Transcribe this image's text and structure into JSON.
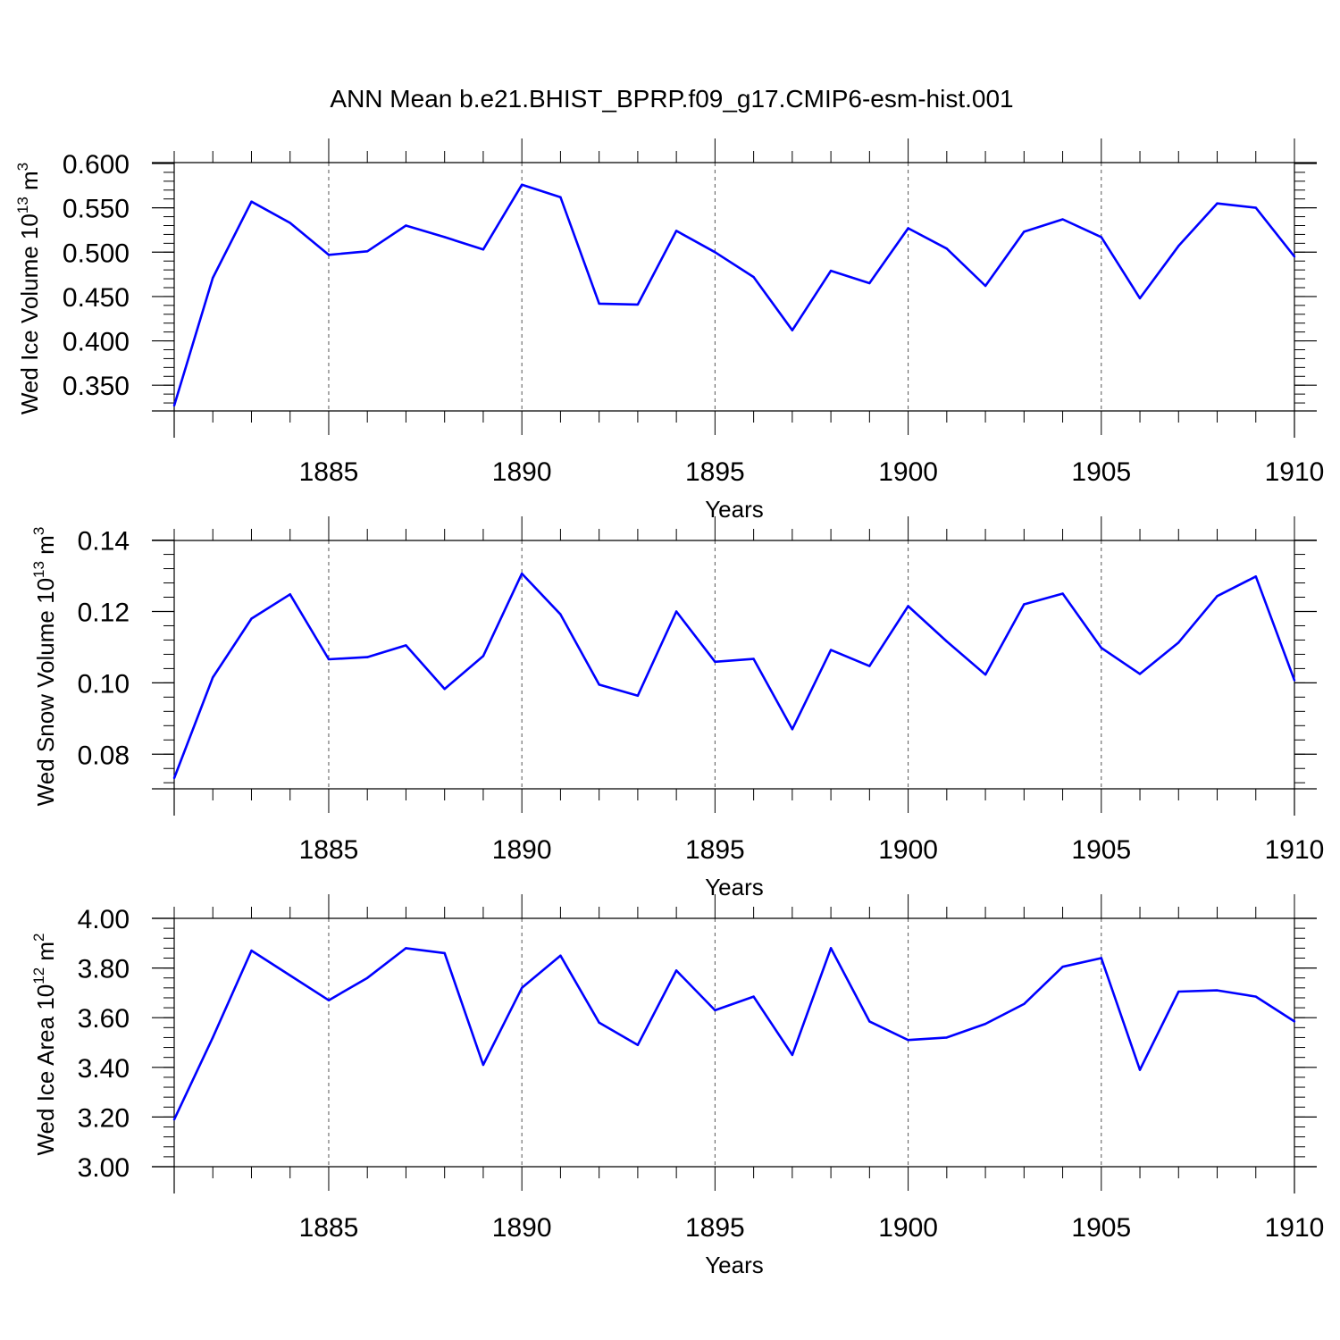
{
  "figure": {
    "title": "ANN Mean b.e21.BHIST_BPRP.f09_g17.CMIP6-esm-hist.001",
    "line_color": "#0000ff"
  },
  "chart_data": [
    {
      "type": "line",
      "title": "ANN Mean b.e21.BHIST_BPRP.f09_g17.CMIP6-esm-hist.001",
      "ylabel": {
        "text": "Wed Ice Volume 10",
        "exp": "13",
        "unit": " m",
        "unit_exp": "3"
      },
      "xlabel": "Years",
      "xlim": [
        1881,
        1910
      ],
      "ylim": [
        0.321,
        0.601
      ],
      "xticks": [
        1885,
        1890,
        1895,
        1900,
        1905,
        1910
      ],
      "yticks": [
        0.35,
        0.4,
        0.45,
        0.5,
        0.55,
        0.6
      ],
      "ytick_labels": [
        "0.350",
        "0.400",
        "0.450",
        "0.500",
        "0.550",
        "0.600"
      ],
      "y_minor_step": 0.01,
      "grid": "dashed vertical lines at major x ticks",
      "series": [
        {
          "x": [
            1881,
            1882,
            1883,
            1884,
            1885,
            1886,
            1887,
            1888,
            1889,
            1890,
            1891,
            1892,
            1893,
            1894,
            1895,
            1896,
            1897,
            1898,
            1899,
            1900,
            1901,
            1902,
            1903,
            1904,
            1905,
            1906,
            1907,
            1908,
            1909,
            1910
          ],
          "values": [
            0.327,
            0.471,
            0.557,
            0.533,
            0.497,
            0.501,
            0.53,
            0.517,
            0.503,
            0.576,
            0.562,
            0.442,
            0.441,
            0.524,
            0.5,
            0.472,
            0.412,
            0.479,
            0.465,
            0.527,
            0.504,
            0.462,
            0.523,
            0.537,
            0.517,
            0.448,
            0.507,
            0.555,
            0.55,
            0.495
          ]
        }
      ]
    },
    {
      "type": "line",
      "ylabel": {
        "text": "Wed Snow Volume 10",
        "exp": "13",
        "unit": " m",
        "unit_exp": "3"
      },
      "xlabel": "Years",
      "xlim": [
        1881,
        1910
      ],
      "ylim": [
        0.0703,
        0.1399
      ],
      "xticks": [
        1885,
        1890,
        1895,
        1900,
        1905,
        1910
      ],
      "yticks": [
        0.08,
        0.1,
        0.12,
        0.14
      ],
      "ytick_labels": [
        "0.08",
        "0.10",
        "0.12",
        "0.14"
      ],
      "y_minor_step": 0.004,
      "grid": "dashed vertical lines at major x ticks",
      "series": [
        {
          "x": [
            1881,
            1882,
            1883,
            1884,
            1885,
            1886,
            1887,
            1888,
            1889,
            1890,
            1891,
            1892,
            1893,
            1894,
            1895,
            1896,
            1897,
            1898,
            1899,
            1900,
            1901,
            1902,
            1903,
            1904,
            1905,
            1906,
            1907,
            1908,
            1909,
            1910
          ],
          "values": [
            0.0733,
            0.1015,
            0.118,
            0.1248,
            0.1066,
            0.1072,
            0.1105,
            0.0983,
            0.1075,
            0.1306,
            0.1192,
            0.0995,
            0.0964,
            0.12,
            0.1059,
            0.1067,
            0.087,
            0.1092,
            0.1047,
            0.1215,
            0.1116,
            0.1023,
            0.122,
            0.125,
            0.1098,
            0.1025,
            0.1113,
            0.1243,
            0.1298,
            0.1007
          ]
        }
      ]
    },
    {
      "type": "line",
      "ylabel": {
        "text": "Wed Ice Area 10",
        "exp": "12",
        "unit": " m",
        "unit_exp": "2"
      },
      "xlabel": "Years",
      "xlim": [
        1881,
        1910
      ],
      "ylim": [
        3.0,
        4.0
      ],
      "xticks": [
        1885,
        1890,
        1895,
        1900,
        1905,
        1910
      ],
      "yticks": [
        3.0,
        3.2,
        3.4,
        3.6,
        3.8,
        4.0
      ],
      "ytick_labels": [
        "3.00",
        "3.20",
        "3.40",
        "3.60",
        "3.80",
        "4.00"
      ],
      "y_minor_step": 0.04,
      "grid": "dashed vertical lines at major x ticks",
      "series": [
        {
          "x": [
            1881,
            1882,
            1883,
            1884,
            1885,
            1886,
            1887,
            1888,
            1889,
            1890,
            1891,
            1892,
            1893,
            1894,
            1895,
            1896,
            1897,
            1898,
            1899,
            1900,
            1901,
            1902,
            1903,
            1904,
            1905,
            1906,
            1907,
            1908,
            1909,
            1910
          ],
          "values": [
            3.19,
            3.52,
            3.87,
            3.77,
            3.67,
            3.76,
            3.88,
            3.86,
            3.41,
            3.72,
            3.85,
            3.58,
            3.49,
            3.79,
            3.63,
            3.685,
            3.45,
            3.88,
            3.585,
            3.51,
            3.52,
            3.575,
            3.655,
            3.805,
            3.84,
            3.39,
            3.705,
            3.71,
            3.685,
            3.585
          ]
        }
      ]
    }
  ]
}
